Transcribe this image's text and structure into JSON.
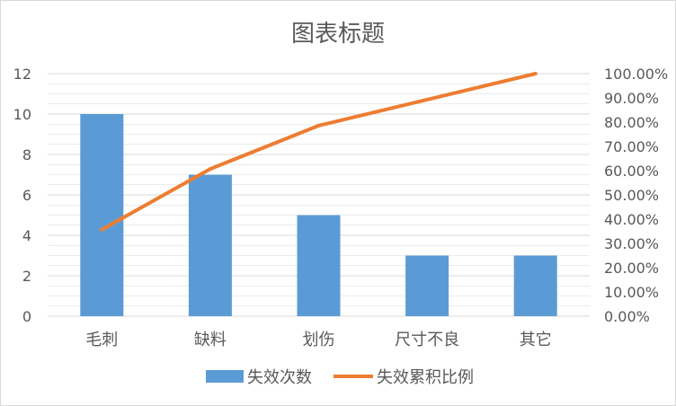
{
  "chart_data": {
    "type": "bar",
    "title": "图表标题",
    "categories": [
      "毛刺",
      "缺料",
      "划伤",
      "尺寸不良",
      "其它"
    ],
    "series": [
      {
        "name": "失效次数",
        "type": "bar",
        "axis": "left",
        "values": [
          10,
          7,
          5,
          3,
          3
        ],
        "color": "#5b9bd5"
      },
      {
        "name": "失效累积比例",
        "type": "line",
        "axis": "right",
        "values": [
          0.3571,
          0.6071,
          0.7857,
          0.8929,
          1.0
        ],
        "color": "#ed7d31"
      }
    ],
    "ylim": [
      0,
      12
    ],
    "y_ticks": [
      "0",
      "2",
      "4",
      "6",
      "8",
      "10",
      "12"
    ],
    "y2lim": [
      0,
      1
    ],
    "y2_ticks": [
      "0.00%",
      "10.00%",
      "20.00%",
      "30.00%",
      "40.00%",
      "50.00%",
      "60.00%",
      "70.00%",
      "80.00%",
      "90.00%",
      "100.00%"
    ],
    "grid": true,
    "legend": "bottom",
    "grid_color": "#d9d9d9"
  }
}
